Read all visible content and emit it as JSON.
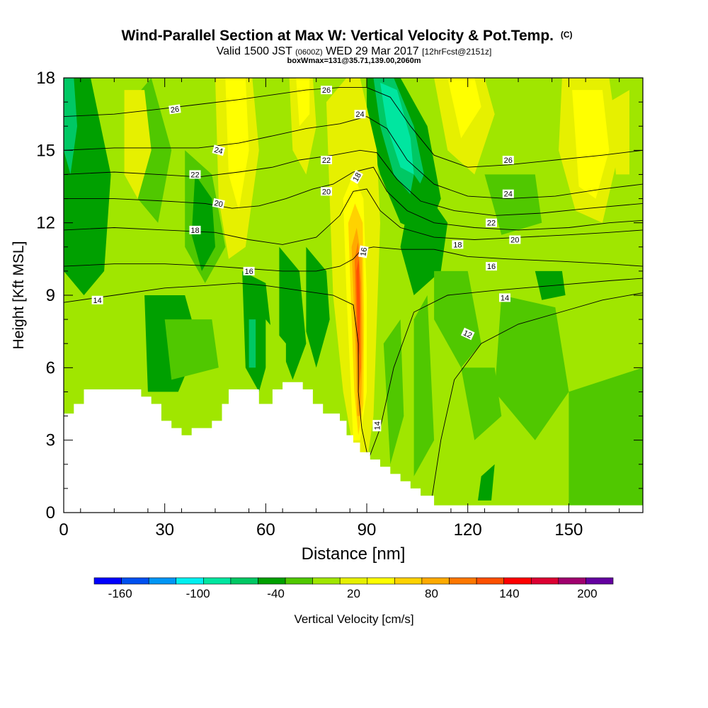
{
  "chart_data": {
    "type": "heatmap",
    "title": "Wind-Parallel Section at Max W: Vertical Velocity & Pot.Temp.",
    "title_mark": "(C)",
    "subtitle": {
      "prefix": "Valid 1500 JST",
      "utc": "(0600Z)",
      "date": "WED 29 Mar 2017",
      "fcst": "[12hrFcst@2151z]"
    },
    "info": "boxWmax=131@35.71,139.00,2060m",
    "xlabel": "Distance [nm]",
    "ylabel": "Height [Kft MSL]",
    "xlim": [
      0,
      172
    ],
    "ylim": [
      0,
      18
    ],
    "x_ticks": [
      0,
      30,
      60,
      90,
      120,
      150
    ],
    "y_ticks": [
      0,
      3,
      6,
      9,
      12,
      15,
      18
    ],
    "colorbar": {
      "label": "Vertical Velocity [cm/s]",
      "tick_labels": [
        "-160",
        "-100",
        "-40",
        "20",
        "80",
        "140",
        "200"
      ],
      "tick_values": [
        -160,
        -100,
        -40,
        20,
        80,
        140,
        200
      ],
      "bounds": [
        -180,
        220
      ],
      "colors": [
        "#0000ff",
        "#0050f0",
        "#0096f5",
        "#00f0f0",
        "#00e6a0",
        "#00c864",
        "#00a000",
        "#50c800",
        "#a0e600",
        "#e6f000",
        "#ffff00",
        "#ffd200",
        "#ffaa00",
        "#ff7800",
        "#ff5000",
        "#ff0000",
        "#dc0032",
        "#a0006e",
        "#6400a0"
      ]
    },
    "updraft_max": {
      "x": 88,
      "y_range": [
        3,
        11
      ],
      "w_peak": 131
    },
    "terrain": [
      [
        0,
        4.1
      ],
      [
        3,
        4.1
      ],
      [
        3,
        4.5
      ],
      [
        6,
        4.5
      ],
      [
        6,
        5.1
      ],
      [
        23,
        5.1
      ],
      [
        23,
        4.8
      ],
      [
        26,
        4.8
      ],
      [
        26,
        4.5
      ],
      [
        29,
        4.5
      ],
      [
        29,
        3.8
      ],
      [
        32,
        3.8
      ],
      [
        32,
        3.5
      ],
      [
        35,
        3.5
      ],
      [
        35,
        3.2
      ],
      [
        38,
        3.2
      ],
      [
        38,
        3.5
      ],
      [
        44,
        3.5
      ],
      [
        44,
        3.8
      ],
      [
        47,
        3.8
      ],
      [
        47,
        4.5
      ],
      [
        49,
        4.5
      ],
      [
        49,
        5.1
      ],
      [
        58,
        5.1
      ],
      [
        58,
        4.5
      ],
      [
        62,
        4.5
      ],
      [
        62,
        5.1
      ],
      [
        65,
        5.1
      ],
      [
        65,
        5.4
      ],
      [
        71,
        5.4
      ],
      [
        71,
        5.1
      ],
      [
        74,
        5.1
      ],
      [
        74,
        4.5
      ],
      [
        77,
        4.5
      ],
      [
        77,
        4.1
      ],
      [
        82,
        4.1
      ],
      [
        82,
        3.8
      ],
      [
        84,
        3.8
      ],
      [
        84,
        3.2
      ],
      [
        86,
        3.2
      ],
      [
        86,
        2.9
      ],
      [
        88,
        2.9
      ],
      [
        88,
        2.5
      ],
      [
        91,
        2.5
      ],
      [
        91,
        2.2
      ],
      [
        94,
        2.2
      ],
      [
        94,
        1.9
      ],
      [
        97,
        1.9
      ],
      [
        97,
        1.6
      ],
      [
        100,
        1.6
      ],
      [
        100,
        1.3
      ],
      [
        103,
        1.3
      ],
      [
        103,
        1.0
      ],
      [
        106,
        1.0
      ],
      [
        106,
        0.7
      ],
      [
        110,
        0.7
      ],
      [
        110,
        0.3
      ],
      [
        172,
        0.3
      ]
    ],
    "contours": [
      {
        "level": 12,
        "label": "12",
        "points": [
          [
            109,
            0.3
          ],
          [
            112,
            3
          ],
          [
            116,
            5.5
          ],
          [
            124,
            7
          ],
          [
            135,
            7.8
          ],
          [
            150,
            8.4
          ],
          [
            160,
            8.8
          ],
          [
            172,
            9.1
          ]
        ]
      },
      {
        "level": 14,
        "label": "14",
        "points": [
          [
            0,
            8.7
          ],
          [
            15,
            9.0
          ],
          [
            30,
            9.3
          ],
          [
            42,
            9.4
          ],
          [
            52,
            9.5
          ],
          [
            60,
            9.4
          ],
          [
            70,
            9.2
          ],
          [
            80,
            9.0
          ],
          [
            86,
            8.6
          ],
          [
            87.5,
            7
          ],
          [
            87.5,
            5
          ],
          [
            88.5,
            3.5
          ],
          [
            90.5,
            2.2
          ],
          [
            94,
            3.5
          ],
          [
            98,
            6
          ],
          [
            104,
            8.3
          ],
          [
            114,
            9
          ],
          [
            128,
            9.2
          ],
          [
            145,
            9.4
          ],
          [
            162,
            9.6
          ],
          [
            172,
            9.7
          ]
        ]
      },
      {
        "level": 16,
        "label": "16",
        "points": [
          [
            0,
            10.2
          ],
          [
            15,
            10.3
          ],
          [
            30,
            10.3
          ],
          [
            45,
            10.2
          ],
          [
            55,
            10.1
          ],
          [
            65,
            10.0
          ],
          [
            75,
            10.0
          ],
          [
            82,
            10.2
          ],
          [
            86,
            10.5
          ],
          [
            88.5,
            10.9
          ],
          [
            92,
            11.0
          ],
          [
            100,
            10.9
          ],
          [
            110,
            10.9
          ],
          [
            120,
            10.6
          ],
          [
            132,
            10.5
          ],
          [
            148,
            10.4
          ],
          [
            162,
            10.3
          ],
          [
            172,
            10.2
          ]
        ]
      },
      {
        "level": 18,
        "label": "18",
        "points": [
          [
            0,
            11.7
          ],
          [
            15,
            11.8
          ],
          [
            30,
            11.7
          ],
          [
            45,
            11.6
          ],
          [
            55,
            11.3
          ],
          [
            65,
            11.1
          ],
          [
            75,
            11.4
          ],
          [
            82,
            12.3
          ],
          [
            86,
            13.3
          ],
          [
            90,
            13.4
          ],
          [
            94,
            12.5
          ],
          [
            100,
            11.8
          ],
          [
            110,
            11.4
          ],
          [
            122,
            11.3
          ],
          [
            136,
            11.4
          ],
          [
            150,
            11.5
          ],
          [
            162,
            11.6
          ],
          [
            172,
            11.7
          ]
        ]
      },
      {
        "level": 20,
        "label": "20",
        "points": [
          [
            0,
            13.0
          ],
          [
            15,
            13.0
          ],
          [
            30,
            12.9
          ],
          [
            42,
            12.8
          ],
          [
            50,
            12.6
          ],
          [
            58,
            12.7
          ],
          [
            66,
            13.0
          ],
          [
            74,
            13.4
          ],
          [
            80,
            13.6
          ],
          [
            86,
            14.1
          ],
          [
            92,
            14.3
          ],
          [
            96,
            13.3
          ],
          [
            102,
            12.5
          ],
          [
            110,
            12.0
          ],
          [
            122,
            11.8
          ],
          [
            135,
            11.7
          ],
          [
            150,
            11.8
          ],
          [
            162,
            12.0
          ],
          [
            172,
            12.1
          ]
        ]
      },
      {
        "level": 22,
        "label": "22",
        "points": [
          [
            0,
            14.0
          ],
          [
            15,
            14.1
          ],
          [
            28,
            14.0
          ],
          [
            40,
            13.9
          ],
          [
            52,
            14.1
          ],
          [
            62,
            14.3
          ],
          [
            70,
            14.6
          ],
          [
            80,
            14.8
          ],
          [
            88,
            15.0
          ],
          [
            93,
            14.9
          ],
          [
            99,
            13.8
          ],
          [
            106,
            12.9
          ],
          [
            116,
            12.5
          ],
          [
            128,
            12.3
          ],
          [
            142,
            12.4
          ],
          [
            156,
            12.6
          ],
          [
            172,
            12.8
          ]
        ]
      },
      {
        "level": 24,
        "label": "24",
        "points": [
          [
            0,
            15.0
          ],
          [
            15,
            15.1
          ],
          [
            28,
            15.1
          ],
          [
            40,
            15.1
          ],
          [
            52,
            15.3
          ],
          [
            62,
            15.6
          ],
          [
            72,
            15.9
          ],
          [
            82,
            16.1
          ],
          [
            90,
            16.4
          ],
          [
            96,
            15.9
          ],
          [
            102,
            14.6
          ],
          [
            110,
            13.6
          ],
          [
            120,
            13.1
          ],
          [
            132,
            13.0
          ],
          [
            146,
            13.1
          ],
          [
            160,
            13.4
          ],
          [
            172,
            13.6
          ]
        ]
      },
      {
        "level": 26,
        "label": "26",
        "points": [
          [
            0,
            16.4
          ],
          [
            15,
            16.5
          ],
          [
            28,
            16.7
          ],
          [
            40,
            16.9
          ],
          [
            52,
            17.1
          ],
          [
            62,
            17.3
          ],
          [
            72,
            17.5
          ],
          [
            82,
            17.6
          ],
          [
            90,
            17.6
          ],
          [
            97,
            17.2
          ],
          [
            103,
            16.0
          ],
          [
            110,
            14.8
          ],
          [
            120,
            14.3
          ],
          [
            132,
            14.4
          ],
          [
            146,
            14.6
          ],
          [
            160,
            14.8
          ],
          [
            172,
            15.0
          ]
        ]
      }
    ],
    "contour_labels": [
      {
        "text": "26",
        "x": 33,
        "y": 16.7,
        "angle": -8
      },
      {
        "text": "24",
        "x": 46,
        "y": 15.0,
        "angle": 15
      },
      {
        "text": "22",
        "x": 39,
        "y": 14.0,
        "angle": 0
      },
      {
        "text": "20",
        "x": 46,
        "y": 12.8,
        "angle": 12
      },
      {
        "text": "18",
        "x": 39,
        "y": 11.7,
        "angle": 0
      },
      {
        "text": "16",
        "x": 55,
        "y": 10.0,
        "angle": 0
      },
      {
        "text": "14",
        "x": 10,
        "y": 8.8,
        "angle": 0
      },
      {
        "text": "26",
        "x": 78,
        "y": 17.5,
        "angle": 0
      },
      {
        "text": "24",
        "x": 88,
        "y": 16.5,
        "angle": 0
      },
      {
        "text": "22",
        "x": 78,
        "y": 14.6,
        "angle": 0
      },
      {
        "text": "20",
        "x": 78,
        "y": 13.3,
        "angle": 0
      },
      {
        "text": "18",
        "x": 87,
        "y": 13.9,
        "angle": -60
      },
      {
        "text": "16",
        "x": 89,
        "y": 10.8,
        "angle": -80
      },
      {
        "text": "14",
        "x": 93,
        "y": 3.6,
        "angle": -90
      },
      {
        "text": "26",
        "x": 132,
        "y": 14.6,
        "angle": 0
      },
      {
        "text": "24",
        "x": 132,
        "y": 13.2,
        "angle": 0
      },
      {
        "text": "22",
        "x": 127,
        "y": 12.0,
        "angle": 0
      },
      {
        "text": "20",
        "x": 134,
        "y": 11.3,
        "angle": 0
      },
      {
        "text": "18",
        "x": 117,
        "y": 11.1,
        "angle": 0
      },
      {
        "text": "16",
        "x": 127,
        "y": 10.2,
        "angle": 0
      },
      {
        "text": "14",
        "x": 131,
        "y": 8.9,
        "angle": 0
      },
      {
        "text": "12",
        "x": 120,
        "y": 7.4,
        "angle": 25
      }
    ]
  }
}
